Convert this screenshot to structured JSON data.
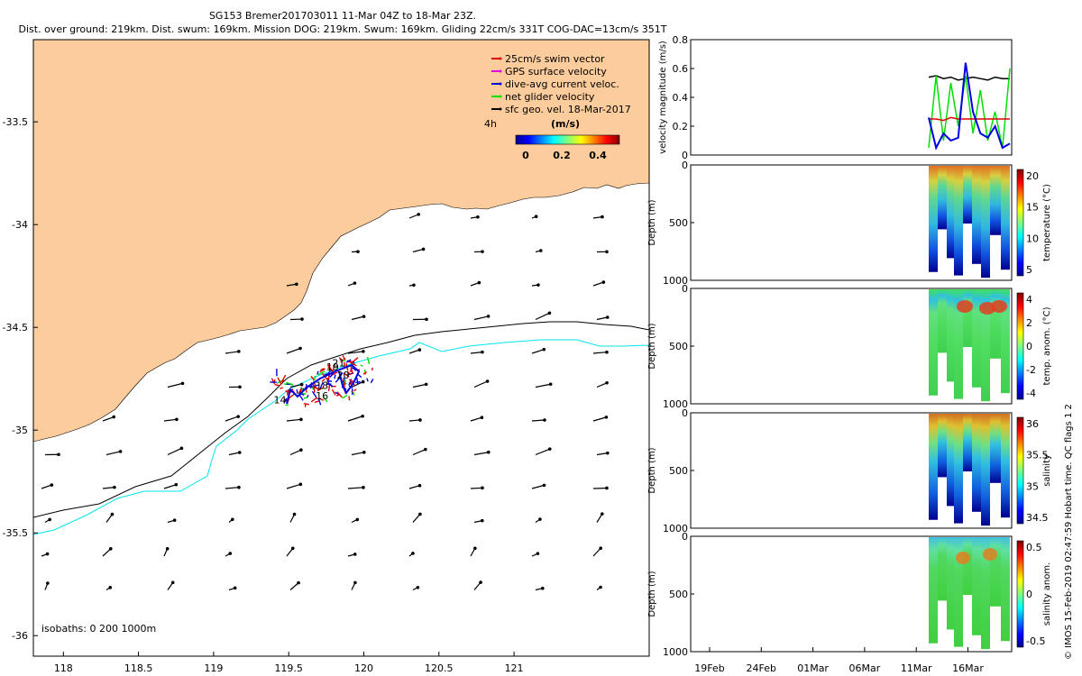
{
  "header": {
    "line1": "SG153 Bremer201703011 11-Mar 04Z to 18-Mar 23Z.",
    "line2": "Dist. over ground: 219km. Dist. swum: 169km. Mission DOG: 219km. Swum: 169km. Gliding 22cm/s 331T COG-DAC=13cm/s 351T"
  },
  "credit": "© IMOS 15-Feb-2019 02:47:59 Hobart time. QC flags 1  2",
  "colors": {
    "land": "#fccc9c",
    "swim": "#e00000",
    "gps": "#e000e0",
    "dac": "#0000e0",
    "net": "#00e000",
    "sfc": "#000000",
    "iso200": "#000000",
    "iso1000": "#00e5ee"
  },
  "chart_data": [
    {
      "type": "map",
      "x_ticks": [
        "118",
        "118.5",
        "119",
        "119.5",
        "120",
        "120.5",
        "121"
      ],
      "y_ticks": [
        "-33.5",
        "-34",
        "-34.5",
        "-35",
        "-35.5",
        "-36"
      ],
      "xlim": [
        117.8,
        121.9
      ],
      "ylim": [
        -36.1,
        -33.1
      ],
      "legend": {
        "items": [
          {
            "key": "swim",
            "label": "25cm/s swim vector"
          },
          {
            "key": "gps",
            "label": "GPS surface velocity"
          },
          {
            "key": "dac",
            "label": "dive-avg current veloc."
          },
          {
            "key": "net",
            "label": "net glider velocity"
          },
          {
            "key": "sfc",
            "label": "sfc geo. vel. 18-Mar-2017"
          }
        ],
        "interval_label": "4h",
        "colorbar_title": "(m/s)",
        "colorbar_ticks": [
          "0",
          "0.2",
          "0.4"
        ],
        "placement": "top-right"
      },
      "isobath_label": "isobaths: 0   200  1000m",
      "day_labels": [
        {
          "text": "14",
          "lon": 119.4,
          "lat": -34.87
        },
        {
          "text": "16",
          "lon": 119.68,
          "lat": -34.85
        },
        {
          "text": "18",
          "lon": 119.68,
          "lat": -34.8
        },
        {
          "text": "19",
          "lon": 119.75,
          "lat": -34.71
        },
        {
          "text": "20",
          "lon": 119.82,
          "lat": -34.75
        },
        {
          "text": "21",
          "lon": 119.79,
          "lat": -34.69
        }
      ]
    },
    {
      "type": "line",
      "ylabel": "velocity magnitude (m/s)",
      "ylim": [
        0,
        0.8
      ],
      "y_ticks": [
        "0",
        "0.2",
        "0.4",
        "0.6",
        "0.8"
      ],
      "x_ticks": [
        "19Feb",
        "24Feb",
        "01Mar",
        "06Mar",
        "11Mar",
        "16Mar"
      ],
      "series": [
        {
          "key": "sfc",
          "values": [
            0.54,
            0.55,
            0.53,
            0.54,
            0.52,
            0.53,
            0.54,
            0.53,
            0.52,
            0.54,
            0.53,
            0.53
          ]
        },
        {
          "key": "net",
          "values": [
            0.05,
            0.55,
            0.1,
            0.5,
            0.2,
            0.55,
            0.15,
            0.45,
            0.1,
            0.3,
            0.05,
            0.6
          ]
        },
        {
          "key": "swim",
          "values": [
            0.25,
            0.25,
            0.24,
            0.26,
            0.25,
            0.25,
            0.25,
            0.25,
            0.25,
            0.25,
            0.25,
            0.25
          ]
        },
        {
          "key": "dac",
          "values": [
            0.26,
            0.05,
            0.15,
            0.1,
            0.12,
            0.64,
            0.3,
            0.15,
            0.12,
            0.2,
            0.05,
            0.08
          ]
        }
      ]
    },
    {
      "type": "heatmap",
      "ylabel": "Depth (m)",
      "cbar_label": "temperature (°C)",
      "cbar_ticks": [
        "20",
        "15",
        "10",
        "5"
      ],
      "cmap": "jet",
      "ylim": [
        1000,
        0
      ],
      "y_ticks": [
        "0",
        "500",
        "1000"
      ]
    },
    {
      "type": "heatmap",
      "ylabel": "Depth (m)",
      "cbar_label": "temp. anom. (°C)",
      "cbar_ticks": [
        "4",
        "2",
        "0",
        "-2",
        "-4"
      ],
      "cmap": "jet",
      "ylim": [
        1000,
        0
      ],
      "y_ticks": [
        "0",
        "500",
        "1000"
      ]
    },
    {
      "type": "heatmap",
      "ylabel": "Depth (m)",
      "cbar_label": "salinity",
      "cbar_ticks": [
        "36",
        "35.5",
        "35",
        "34.5"
      ],
      "cmap": "jet",
      "ylim": [
        1000,
        0
      ],
      "y_ticks": [
        "0",
        "500",
        "1000"
      ]
    },
    {
      "type": "heatmap",
      "ylabel": "Depth (m)",
      "cbar_label": "salinity anom.",
      "cbar_ticks": [
        "0.5",
        "0",
        "-0.5"
      ],
      "cmap": "jet",
      "ylim": [
        1000,
        0
      ],
      "y_ticks": [
        "0",
        "500",
        "1000"
      ]
    }
  ]
}
